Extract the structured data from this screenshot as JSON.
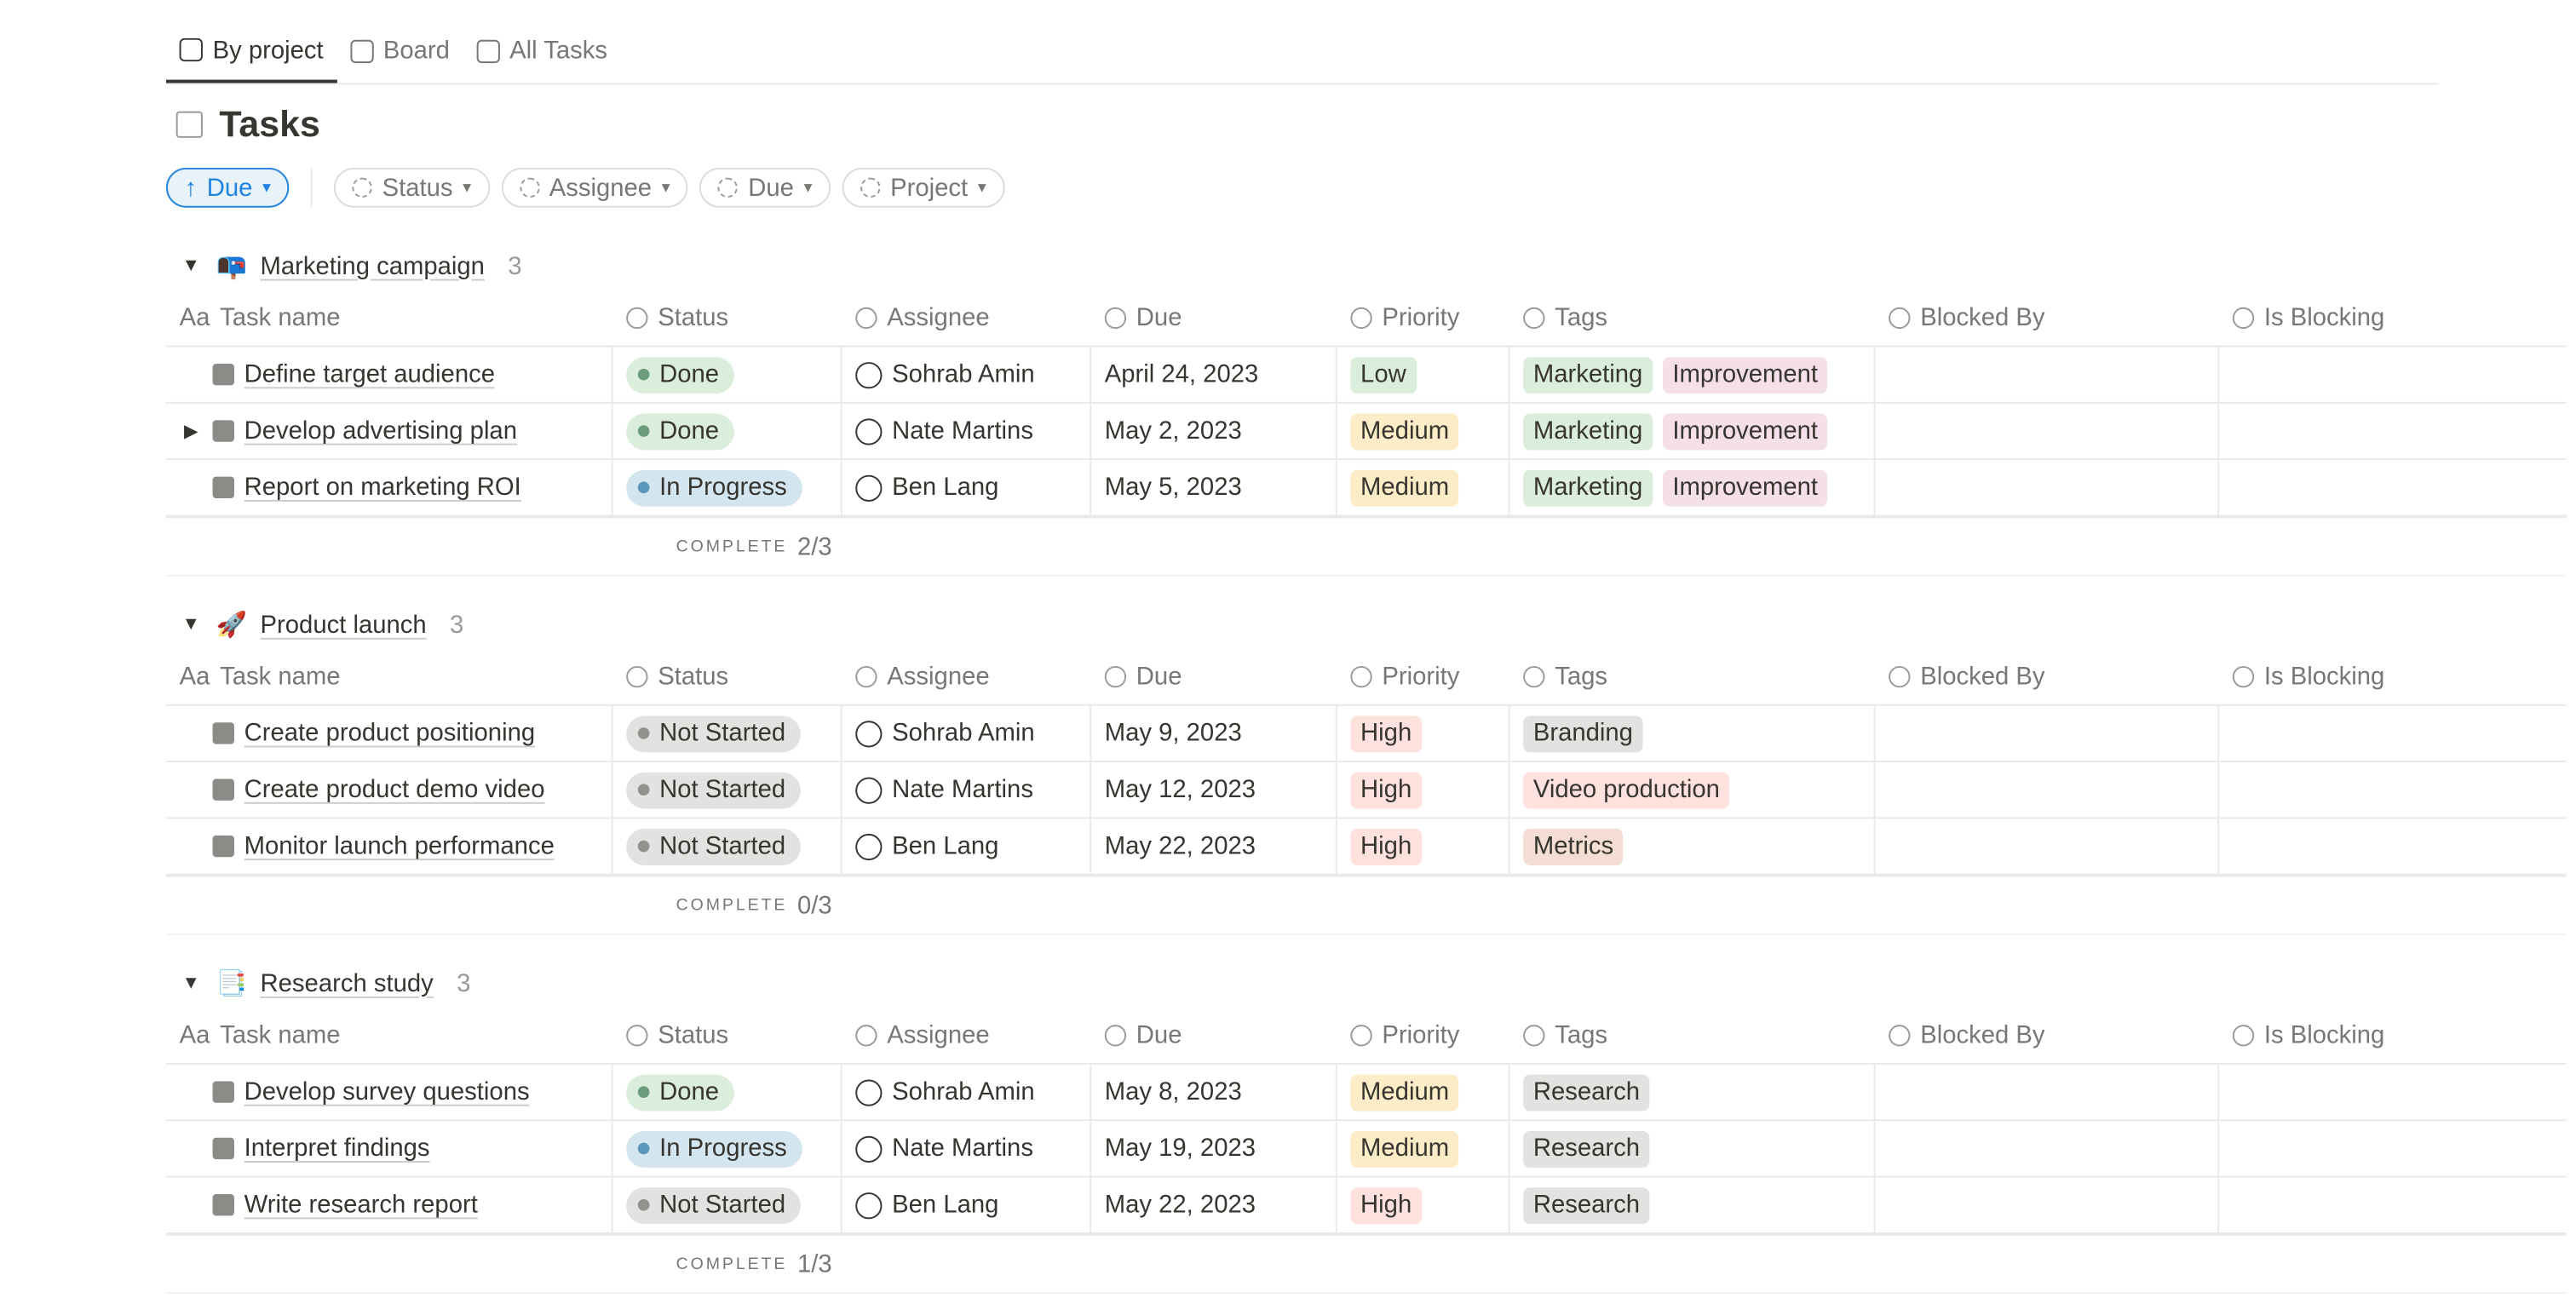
{
  "tabs": [
    {
      "label": "By project",
      "active": true
    },
    {
      "label": "Board",
      "active": false
    },
    {
      "label": "All Tasks",
      "active": false
    }
  ],
  "title": "Tasks",
  "sort": "Due",
  "filters": [
    "Status",
    "Assignee",
    "Due",
    "Project"
  ],
  "columns": [
    {
      "icon": "Aa",
      "label": "Task name"
    },
    {
      "label": "Status"
    },
    {
      "label": "Assignee"
    },
    {
      "label": "Due"
    },
    {
      "label": "Priority"
    },
    {
      "label": "Tags"
    },
    {
      "label": "Blocked By"
    },
    {
      "label": "Is Blocking"
    }
  ],
  "complete_label": "COMPLETE",
  "groups": [
    {
      "emoji": "📭",
      "name": "Marketing campaign",
      "count": "3",
      "complete": "2/3",
      "rows": [
        {
          "task": "Define target audience",
          "expandable": false,
          "status": {
            "label": "Done",
            "color": "green"
          },
          "assignee": "Sohrab Amin",
          "due": "April 24, 2023",
          "priority": {
            "label": "Low",
            "color": "green"
          },
          "tags": [
            {
              "label": "Marketing",
              "color": "green"
            },
            {
              "label": "Improvement",
              "color": "pink"
            }
          ]
        },
        {
          "task": "Develop advertising plan",
          "expandable": true,
          "status": {
            "label": "Done",
            "color": "green"
          },
          "assignee": "Nate Martins",
          "due": "May 2, 2023",
          "priority": {
            "label": "Medium",
            "color": "yellow"
          },
          "tags": [
            {
              "label": "Marketing",
              "color": "green"
            },
            {
              "label": "Improvement",
              "color": "pink"
            }
          ]
        },
        {
          "task": "Report on marketing ROI",
          "expandable": false,
          "status": {
            "label": "In Progress",
            "color": "blue"
          },
          "assignee": "Ben Lang",
          "due": "May 5, 2023",
          "priority": {
            "label": "Medium",
            "color": "yellow"
          },
          "tags": [
            {
              "label": "Marketing",
              "color": "green"
            },
            {
              "label": "Improvement",
              "color": "pink"
            }
          ]
        }
      ]
    },
    {
      "emoji": "🚀",
      "name": "Product launch",
      "count": "3",
      "complete": "0/3",
      "rows": [
        {
          "task": "Create product positioning",
          "expandable": false,
          "status": {
            "label": "Not Started",
            "color": "gray"
          },
          "assignee": "Sohrab Amin",
          "due": "May 9, 2023",
          "priority": {
            "label": "High",
            "color": "red"
          },
          "tags": [
            {
              "label": "Branding",
              "color": "gray"
            }
          ]
        },
        {
          "task": "Create product demo video",
          "expandable": false,
          "status": {
            "label": "Not Started",
            "color": "gray"
          },
          "assignee": "Nate Martins",
          "due": "May 12, 2023",
          "priority": {
            "label": "High",
            "color": "red"
          },
          "tags": [
            {
              "label": "Video production",
              "color": "red"
            }
          ]
        },
        {
          "task": "Monitor launch performance",
          "expandable": false,
          "status": {
            "label": "Not Started",
            "color": "gray"
          },
          "assignee": "Ben Lang",
          "due": "May 22, 2023",
          "priority": {
            "label": "High",
            "color": "red"
          },
          "tags": [
            {
              "label": "Metrics",
              "color": "brown"
            }
          ]
        }
      ]
    },
    {
      "emoji": "📑",
      "name": "Research study",
      "count": "3",
      "complete": "1/3",
      "rows": [
        {
          "task": "Develop survey questions",
          "expandable": false,
          "status": {
            "label": "Done",
            "color": "green"
          },
          "assignee": "Sohrab Amin",
          "due": "May 8, 2023",
          "priority": {
            "label": "Medium",
            "color": "yellow"
          },
          "tags": [
            {
              "label": "Research",
              "color": "gray"
            }
          ]
        },
        {
          "task": "Interpret findings",
          "expandable": false,
          "status": {
            "label": "In Progress",
            "color": "blue"
          },
          "assignee": "Nate Martins",
          "due": "May 19, 2023",
          "priority": {
            "label": "Medium",
            "color": "yellow"
          },
          "tags": [
            {
              "label": "Research",
              "color": "gray"
            }
          ]
        },
        {
          "task": "Write research report",
          "expandable": false,
          "status": {
            "label": "Not Started",
            "color": "gray"
          },
          "assignee": "Ben Lang",
          "due": "May 22, 2023",
          "priority": {
            "label": "High",
            "color": "red"
          },
          "tags": [
            {
              "label": "Research",
              "color": "gray"
            }
          ]
        }
      ]
    }
  ]
}
